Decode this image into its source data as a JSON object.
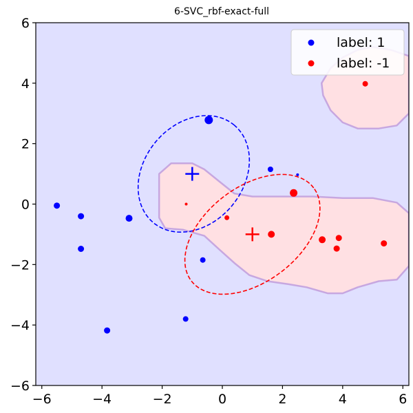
{
  "chart_data": {
    "type": "scatter",
    "title": "6-SVC_rbf-exact-full",
    "xlabel": "",
    "ylabel": "",
    "xlim": [
      -6.2,
      6.2
    ],
    "ylim": [
      -6,
      6
    ],
    "xticks": [
      -6,
      -4,
      -2,
      0,
      2,
      4,
      6
    ],
    "yticks": [
      -6,
      -4,
      -2,
      0,
      2,
      4,
      6
    ],
    "grid": false,
    "legend_position": "top-right",
    "colors": {
      "class_pos": "#0000ff",
      "class_neg": "#ff0000",
      "background_pos": "#e0e0ff",
      "background_neg": "#ffe0e3",
      "boundary": "#c7a7e0"
    },
    "series": [
      {
        "name": "label: 1",
        "color": "#0000ff",
        "points": [
          {
            "x": -5.5,
            "y": -0.05,
            "size": 4.5
          },
          {
            "x": -4.7,
            "y": -0.4,
            "size": 4.5
          },
          {
            "x": -4.7,
            "y": -1.48,
            "size": 4.5
          },
          {
            "x": -3.83,
            "y": -4.18,
            "size": 4.5
          },
          {
            "x": -3.1,
            "y": -0.47,
            "size": 5
          },
          {
            "x": -1.22,
            "y": -3.8,
            "size": 4
          },
          {
            "x": -0.65,
            "y": -1.85,
            "size": 4
          },
          {
            "x": -0.45,
            "y": 2.78,
            "size": 6
          },
          {
            "x": 1.6,
            "y": 1.15,
            "size": 4
          },
          {
            "x": 2.5,
            "y": 0.97,
            "size": 2
          }
        ]
      },
      {
        "name": "label: -1",
        "color": "#ff0000",
        "points": [
          {
            "x": -1.2,
            "y": 0.0,
            "size": 2
          },
          {
            "x": 0.15,
            "y": -0.45,
            "size": 3.5
          },
          {
            "x": 1.63,
            "y": -1.0,
            "size": 5
          },
          {
            "x": 2.37,
            "y": 0.37,
            "size": 5.5
          },
          {
            "x": 3.32,
            "y": -1.18,
            "size": 5
          },
          {
            "x": 3.8,
            "y": -1.47,
            "size": 4.5
          },
          {
            "x": 3.87,
            "y": -1.12,
            "size": 4.5
          },
          {
            "x": 4.75,
            "y": 3.98,
            "size": 4
          },
          {
            "x": 5.37,
            "y": -1.3,
            "size": 4.5
          }
        ]
      }
    ],
    "means": [
      {
        "class": "label: 1",
        "x": -1.0,
        "y": 1.0,
        "color": "#0000ff"
      },
      {
        "class": "label: -1",
        "x": 1.0,
        "y": -1.0,
        "color": "#ff0000"
      }
    ],
    "covariance_ellipses": [
      {
        "class": "label: 1",
        "cx": -0.95,
        "cy": 1.0,
        "rx": 2.1,
        "ry": 1.65,
        "angle_deg": 50,
        "color": "#0000ff"
      },
      {
        "class": "label: -1",
        "cx": 1.0,
        "cy": -1.0,
        "rx": 2.55,
        "ry": 1.57,
        "angle_deg": 37,
        "color": "#ff0000"
      }
    ],
    "decision_regions_neg": [
      [
        [
          -2.1,
          1.0
        ],
        [
          -1.7,
          1.35
        ],
        [
          -1.0,
          1.35
        ],
        [
          -0.6,
          1.15
        ],
        [
          -0.1,
          0.75
        ],
        [
          0.4,
          0.35
        ],
        [
          1.0,
          0.25
        ],
        [
          2.0,
          0.25
        ],
        [
          3.0,
          0.25
        ],
        [
          4.0,
          0.2
        ],
        [
          5.0,
          0.2
        ],
        [
          5.8,
          0.05
        ],
        [
          6.2,
          -0.3
        ],
        [
          6.2,
          -2.05
        ],
        [
          5.8,
          -2.5
        ],
        [
          5.2,
          -2.55
        ],
        [
          4.5,
          -2.75
        ],
        [
          4.0,
          -2.95
        ],
        [
          3.5,
          -2.95
        ],
        [
          2.8,
          -2.75
        ],
        [
          2.2,
          -2.65
        ],
        [
          1.5,
          -2.55
        ],
        [
          0.9,
          -2.35
        ],
        [
          0.4,
          -1.95
        ],
        [
          -0.1,
          -1.5
        ],
        [
          -0.6,
          -1.05
        ],
        [
          -1.3,
          -0.85
        ],
        [
          -1.9,
          -0.8
        ],
        [
          -2.1,
          -0.45
        ]
      ],
      [
        [
          3.3,
          4.0
        ],
        [
          3.6,
          4.5
        ],
        [
          4.0,
          4.85
        ],
        [
          4.5,
          5.1
        ],
        [
          5.0,
          5.2
        ],
        [
          5.6,
          5.1
        ],
        [
          6.2,
          4.9
        ],
        [
          6.2,
          3.0
        ],
        [
          5.8,
          2.6
        ],
        [
          5.2,
          2.5
        ],
        [
          4.5,
          2.5
        ],
        [
          4.0,
          2.7
        ],
        [
          3.6,
          3.1
        ],
        [
          3.35,
          3.6
        ]
      ]
    ]
  }
}
